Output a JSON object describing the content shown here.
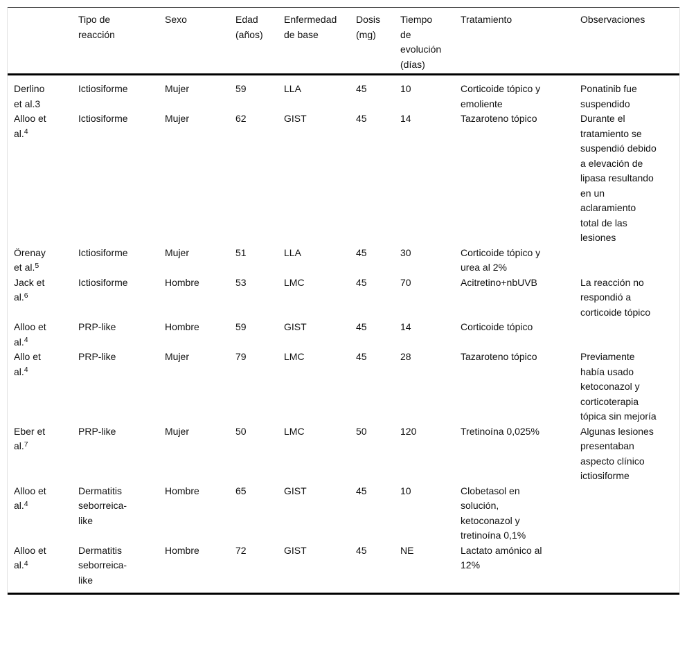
{
  "table": {
    "columns": [
      "",
      "Tipo de reacción",
      "Sexo",
      "Edad (años)",
      "Enfermedad de base",
      "Dosis (mg)",
      "Tiempo de evolución (días)",
      "Tratamiento",
      "Observaciones"
    ],
    "rows": [
      {
        "study": "Derlino et al.3",
        "ref": "",
        "tipo_de_reaccion": "Ictiosiforme",
        "sexo": "Mujer",
        "edad": "59",
        "enfermedad_de_base": "LLA",
        "dosis": "45",
        "tiempo_evolucion": "10",
        "tratamiento": "Corticoide tópico y emoliente",
        "observaciones": "Ponatinib fue suspendido"
      },
      {
        "study": "Alloo et al.",
        "ref": "4",
        "tipo_de_reaccion": "Ictiosiforme",
        "sexo": "Mujer",
        "edad": "62",
        "enfermedad_de_base": "GIST",
        "dosis": "45",
        "tiempo_evolucion": "14",
        "tratamiento": "Tazaroteno tópico",
        "observaciones": "Durante el tratamiento se suspendió debido a elevación de lipasa resultando en un aclaramiento total de las lesiones"
      },
      {
        "study": "Örenay et al.",
        "ref": "5",
        "tipo_de_reaccion": "Ictiosiforme",
        "sexo": "Mujer",
        "edad": "51",
        "enfermedad_de_base": "LLA",
        "dosis": "45",
        "tiempo_evolucion": "30",
        "tratamiento": "Corticoide tópico y urea al 2%",
        "observaciones": ""
      },
      {
        "study": "Jack et al.",
        "ref": "6",
        "tipo_de_reaccion": "Ictiosiforme",
        "sexo": "Hombre",
        "edad": "53",
        "enfermedad_de_base": "LMC",
        "dosis": "45",
        "tiempo_evolucion": "70",
        "tratamiento": "Acitretino+nbUVB",
        "observaciones": "La reacción no respondió a corticoide tópico"
      },
      {
        "study": "Alloo et al.",
        "ref": "4",
        "tipo_de_reaccion": "PRP-like",
        "sexo": "Hombre",
        "edad": "59",
        "enfermedad_de_base": "GIST",
        "dosis": "45",
        "tiempo_evolucion": "14",
        "tratamiento": "Corticoide tópico",
        "observaciones": ""
      },
      {
        "study": "Allo et al.",
        "ref": "4",
        "tipo_de_reaccion": "PRP-like",
        "sexo": "Mujer",
        "edad": "79",
        "enfermedad_de_base": "LMC",
        "dosis": "45",
        "tiempo_evolucion": "28",
        "tratamiento": "Tazaroteno tópico",
        "observaciones": "Previamente había usado ketoconazol y corticoterapia tópica sin mejoría"
      },
      {
        "study": "Eber et al.",
        "ref": "7",
        "tipo_de_reaccion": "PRP-like",
        "sexo": "Mujer",
        "edad": "50",
        "enfermedad_de_base": "LMC",
        "dosis": "50",
        "tiempo_evolucion": "120",
        "tratamiento": "Tretinoína 0,025%",
        "observaciones": "Algunas lesiones presentaban aspecto clínico ictiosiforme"
      },
      {
        "study": "Alloo et al.",
        "ref": "4",
        "tipo_de_reaccion": "Dermatitis seborreica-like",
        "sexo": "Hombre",
        "edad": "65",
        "enfermedad_de_base": "GIST",
        "dosis": "45",
        "tiempo_evolucion": "10",
        "tratamiento": "Clobetasol en solución, ketoconazol y tretinoína 0,1%",
        "observaciones": ""
      },
      {
        "study": "Alloo et al.",
        "ref": "4",
        "tipo_de_reaccion": "Dermatitis seborreica-like",
        "sexo": "Hombre",
        "edad": "72",
        "enfermedad_de_base": "GIST",
        "dosis": "45",
        "tiempo_evolucion": "NE",
        "tratamiento": "Lactato amónico al 12%",
        "observaciones": ""
      }
    ]
  }
}
